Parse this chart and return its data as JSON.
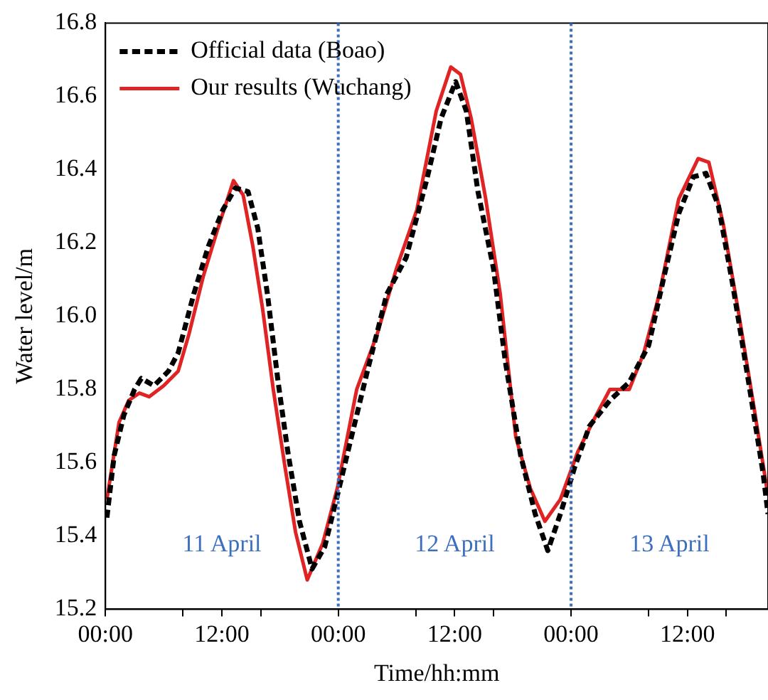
{
  "chart_data": {
    "type": "line",
    "xlabel": "Time/hh:mm",
    "ylabel": "Water level/m",
    "xlim": [
      "--04-11T00:00",
      "--04-13T20:18"
    ],
    "xticks": [
      {
        "value": "--04-11T00:00",
        "label": "00:00"
      },
      {
        "value": "--04-11T08:00",
        "label": null
      },
      {
        "value": "--04-11T12:00",
        "label": "12:00"
      },
      {
        "value": "--04-11T16:00",
        "label": null
      },
      {
        "value": "--04-12T00:00",
        "label": "00:00"
      },
      {
        "value": "--04-12T08:00",
        "label": null
      },
      {
        "value": "--04-12T12:00",
        "label": "12:00"
      },
      {
        "value": "--04-12T16:00",
        "label": null
      },
      {
        "value": "--04-13T00:00",
        "label": "00:00"
      },
      {
        "value": "--04-13T08:00",
        "label": null
      },
      {
        "value": "--04-13T12:00",
        "label": "12:00"
      },
      {
        "value": "--04-13T16:00",
        "label": null
      }
    ],
    "ylim": [
      15.2,
      16.8
    ],
    "yticks": [
      {
        "value": 15.2,
        "label": "15.2"
      },
      {
        "value": 15.4,
        "label": "15.4"
      },
      {
        "value": 15.6,
        "label": "15.6"
      },
      {
        "value": 15.8,
        "label": "15.8"
      },
      {
        "value": 16,
        "label": "16.0"
      },
      {
        "value": 16.2,
        "label": "16.2"
      },
      {
        "value": 16.4,
        "label": "16.4"
      },
      {
        "value": 16.6,
        "label": "16.6"
      },
      {
        "value": 16.8,
        "label": "16.8"
      }
    ],
    "grid": false,
    "legend": "top left",
    "marker": "none",
    "ref_lines": [
      {
        "axis": "x",
        "value": "--04-12T00:00",
        "color": "#3d6fc0",
        "line_style": "dotted"
      },
      {
        "axis": "x",
        "value": "--04-13T00:00",
        "color": "#3d6fc0",
        "line_style": "dotted"
      }
    ],
    "annotations": [
      "11 April",
      "12 April",
      "13 April"
    ],
    "series": [
      {
        "name": "Official data (Boao)",
        "color": "#000000",
        "line_style": "dashed",
        "x": [
          "--04-11T00:09",
          "--04-11T00:54",
          "--04-11T01:54",
          "--04-11T03:00",
          "--04-11T03:42",
          "--04-11T05:00",
          "--04-11T06:30",
          "--04-11T07:30",
          "--04-11T09:06",
          "--04-11T10:36",
          "--04-11T12:06",
          "--04-11T13:24",
          "--04-11T14:42",
          "--04-11T15:42",
          "--04-11T16:42",
          "--04-11T17:48",
          "--04-11T18:48",
          "--04-11T20:00",
          "--04-11T21:18",
          "--04-11T22:36",
          "--04-11T23:54",
          "--04-12T00:54",
          "--04-12T03:00",
          "--04-12T05:00",
          "--04-12T07:00",
          "--04-12T09:06",
          "--04-12T10:36",
          "--04-12T12:06",
          "--04-12T13:12",
          "--04-12T14:24",
          "--04-12T16:00",
          "--04-12T17:12",
          "--04-12T18:48",
          "--04-12T20:18",
          "--04-12T21:36",
          "--04-12T22:54",
          "--04-13T00:24",
          "--04-13T01:54",
          "--04-13T04:00",
          "--04-13T06:00",
          "--04-13T08:00",
          "--04-13T09:36",
          "--04-13T11:06",
          "--04-13T12:36",
          "--04-13T13:54",
          "--04-13T15:12",
          "--04-13T16:42",
          "--04-13T18:18",
          "--04-13T19:48",
          "--04-13T20:18"
        ],
        "values": [
          15.45,
          15.62,
          15.73,
          15.8,
          15.83,
          15.81,
          15.85,
          15.9,
          16.06,
          16.19,
          16.29,
          16.35,
          16.34,
          16.24,
          16.06,
          15.82,
          15.63,
          15.44,
          15.31,
          15.37,
          15.51,
          15.62,
          15.85,
          16.06,
          16.16,
          16.37,
          16.54,
          16.64,
          16.56,
          16.34,
          16.13,
          15.88,
          15.62,
          15.46,
          15.36,
          15.46,
          15.59,
          15.7,
          15.77,
          15.82,
          15.92,
          16.11,
          16.28,
          16.38,
          16.39,
          16.3,
          16.08,
          15.82,
          15.57,
          15.46
        ]
      },
      {
        "name": "Our results (Wuchang)",
        "color": "#e02424",
        "line_style": "solid",
        "x": [
          "--04-11T00:09",
          "--04-11T01:24",
          "--04-11T02:24",
          "--04-11T03:30",
          "--04-11T04:30",
          "--04-11T06:00",
          "--04-11T07:30",
          "--04-11T08:36",
          "--04-11T10:06",
          "--04-11T11:36",
          "--04-11T13:12",
          "--04-11T14:12",
          "--04-11T15:12",
          "--04-11T16:12",
          "--04-11T17:18",
          "--04-11T18:30",
          "--04-11T19:36",
          "--04-11T20:48",
          "--04-11T22:24",
          "--04-11T23:54",
          "--04-12T01:54",
          "--04-12T04:00",
          "--04-12T06:00",
          "--04-12T08:06",
          "--04-12T10:06",
          "--04-12T11:36",
          "--04-12T12:36",
          "--04-12T13:42",
          "--04-12T15:12",
          "--04-12T16:42",
          "--04-12T18:18",
          "--04-12T19:48",
          "--04-12T21:18",
          "--04-12T22:54",
          "--04-13T00:42",
          "--04-13T02:24",
          "--04-13T04:00",
          "--04-13T06:00",
          "--04-13T07:30",
          "--04-13T09:06",
          "--04-13T11:06",
          "--04-13T13:06",
          "--04-13T14:12",
          "--04-13T15:42",
          "--04-13T17:12",
          "--04-13T18:48",
          "--04-13T20:18"
        ],
        "values": [
          15.5,
          15.71,
          15.77,
          15.79,
          15.78,
          15.81,
          15.85,
          15.95,
          16.11,
          16.24,
          16.37,
          16.33,
          16.19,
          16.02,
          15.8,
          15.59,
          15.41,
          15.28,
          15.38,
          15.53,
          15.8,
          15.95,
          16.13,
          16.29,
          16.56,
          16.68,
          16.66,
          16.54,
          16.32,
          16.06,
          15.67,
          15.53,
          15.44,
          15.5,
          15.63,
          15.72,
          15.8,
          15.8,
          15.9,
          16.06,
          16.32,
          16.43,
          16.42,
          16.25,
          16.02,
          15.76,
          15.51
        ]
      }
    ]
  }
}
